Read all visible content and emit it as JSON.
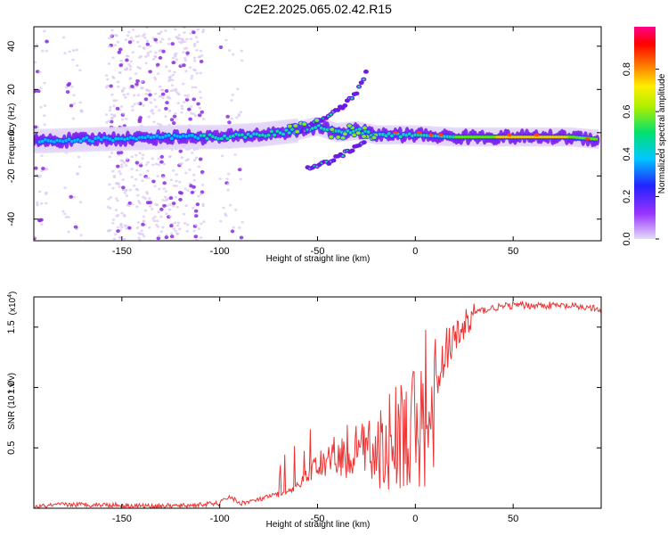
{
  "title": "C2E2.2025.065.02.42.R15",
  "chart_data": [
    {
      "type": "heatmap",
      "name": "spectrogram",
      "xlabel": "Height of straight line (km)",
      "ylabel": "Frequency (Hz)",
      "xlim": [
        -195,
        95
      ],
      "ylim": [
        -50,
        49
      ],
      "xticks": [
        -150,
        -100,
        -50,
        0,
        50
      ],
      "yticks": [
        -40,
        -20,
        0,
        20,
        40
      ],
      "description_series": [
        {
          "name": "main frequency band centre (Hz)",
          "x": [
            -195,
            -160,
            -120,
            -100,
            -80,
            -60,
            -50,
            -40,
            -30,
            -20,
            0,
            20,
            50,
            80,
            92
          ],
          "values": [
            -4,
            -3,
            -2,
            -2,
            -1,
            1,
            3,
            0,
            1,
            -1,
            -1,
            -2,
            -2,
            -2,
            -3
          ]
        },
        {
          "name": "upper echo trace (Hz)",
          "x": [
            -60,
            -50,
            -40,
            -30,
            -25
          ],
          "values": [
            0,
            5,
            10,
            18,
            28
          ]
        },
        {
          "name": "lower echo trace (Hz)",
          "x": [
            -55,
            -45,
            -35,
            -25
          ],
          "values": [
            -17,
            -14,
            -9,
            -4
          ]
        }
      ],
      "colorbar": {
        "label": "Normalized spectral amplitude",
        "ticks": [
          "0.0",
          "0.2",
          "0.4",
          "0.6",
          "0.8"
        ],
        "range": [
          0,
          1
        ]
      }
    },
    {
      "type": "line",
      "name": "snr",
      "xlabel": "Height of straight line (km)",
      "ylabel": "SNR (10 * v/v)",
      "exponent_label": "(x10",
      "exponent_power": "4",
      "exponent_close": ")",
      "xlim": [
        -195,
        95
      ],
      "ylim": [
        0,
        1.75
      ],
      "xticks": [
        -150,
        -100,
        -50,
        0,
        50
      ],
      "yticks": [
        0.5,
        1.0,
        1.5
      ],
      "ytick_labels": [
        "0.5",
        "1.0",
        "1.5"
      ],
      "color": "#ee3333",
      "x": [
        -195,
        -180,
        -160,
        -140,
        -120,
        -100,
        -95,
        -90,
        -80,
        -70,
        -60,
        -55,
        -50,
        -45,
        -40,
        -35,
        -30,
        -25,
        -20,
        -15,
        -10,
        -5,
        0,
        5,
        10,
        12,
        15,
        20,
        25,
        30,
        40,
        50,
        60,
        70,
        80,
        90,
        95
      ],
      "values": [
        0.01,
        0.03,
        0.03,
        0.02,
        0.02,
        0.04,
        0.1,
        0.04,
        0.07,
        0.12,
        0.22,
        0.35,
        0.45,
        0.55,
        0.55,
        0.65,
        0.7,
        0.72,
        0.85,
        0.9,
        1.05,
        1.1,
        1.15,
        1.2,
        1.3,
        1.1,
        1.35,
        1.4,
        1.55,
        1.62,
        1.66,
        1.68,
        1.68,
        1.68,
        1.67,
        1.66,
        1.63
      ]
    }
  ]
}
